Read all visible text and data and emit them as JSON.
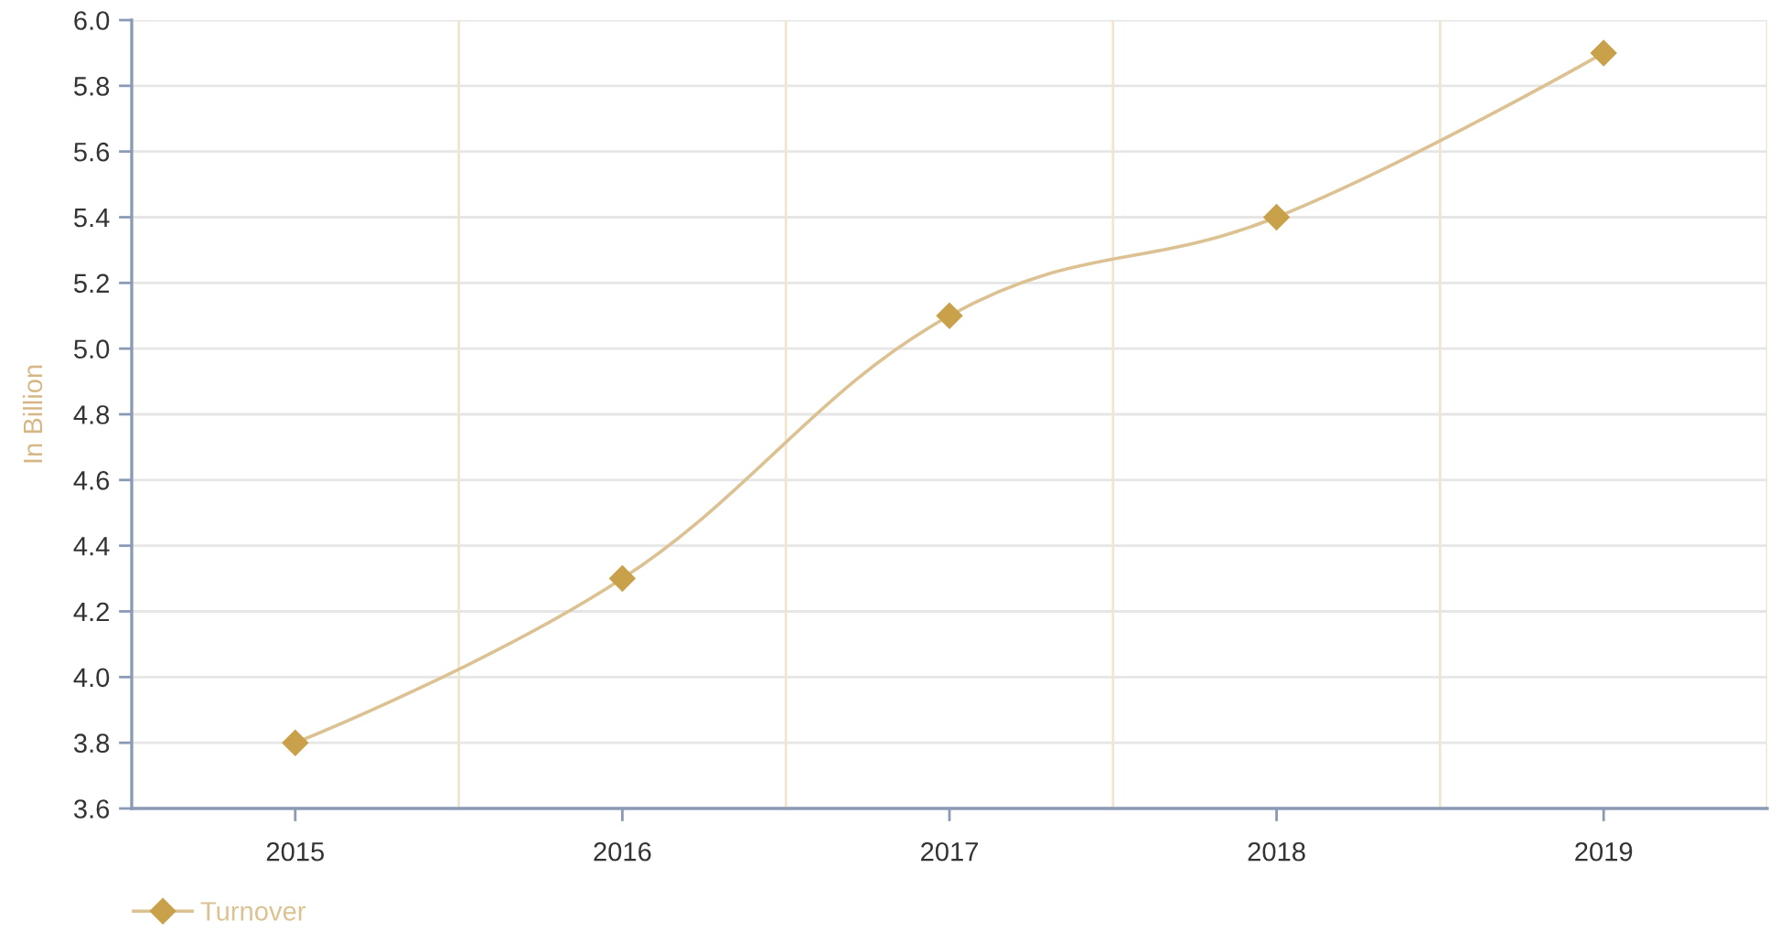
{
  "chart_data": {
    "type": "line",
    "ylabel": "In Billion",
    "categories": [
      "2015",
      "2016",
      "2017",
      "2018",
      "2019"
    ],
    "series": [
      {
        "name": "Turnover",
        "color": "#dcc292",
        "colors": [
          "#c9a14a",
          "#c9a14a",
          "#c9a14a",
          "#c9a14a",
          "#c9a14a"
        ],
        "values": [
          3.8,
          4.3,
          5.1,
          5.4,
          5.9
        ]
      }
    ],
    "ylim": [
      3.6,
      6.0
    ],
    "yticks": [
      3.6,
      3.8,
      {
        "value": 4,
        "label": "4.0"
      },
      4.2,
      4.4,
      4.6,
      4.8,
      {
        "value": 5,
        "label": "5.0"
      },
      5.2,
      5.4,
      5.6,
      5.8,
      {
        "value": 6,
        "label": "6.0"
      }
    ],
    "grid": true,
    "legend": "bottom left",
    "marker": "diamond",
    "line_style": "solid"
  }
}
